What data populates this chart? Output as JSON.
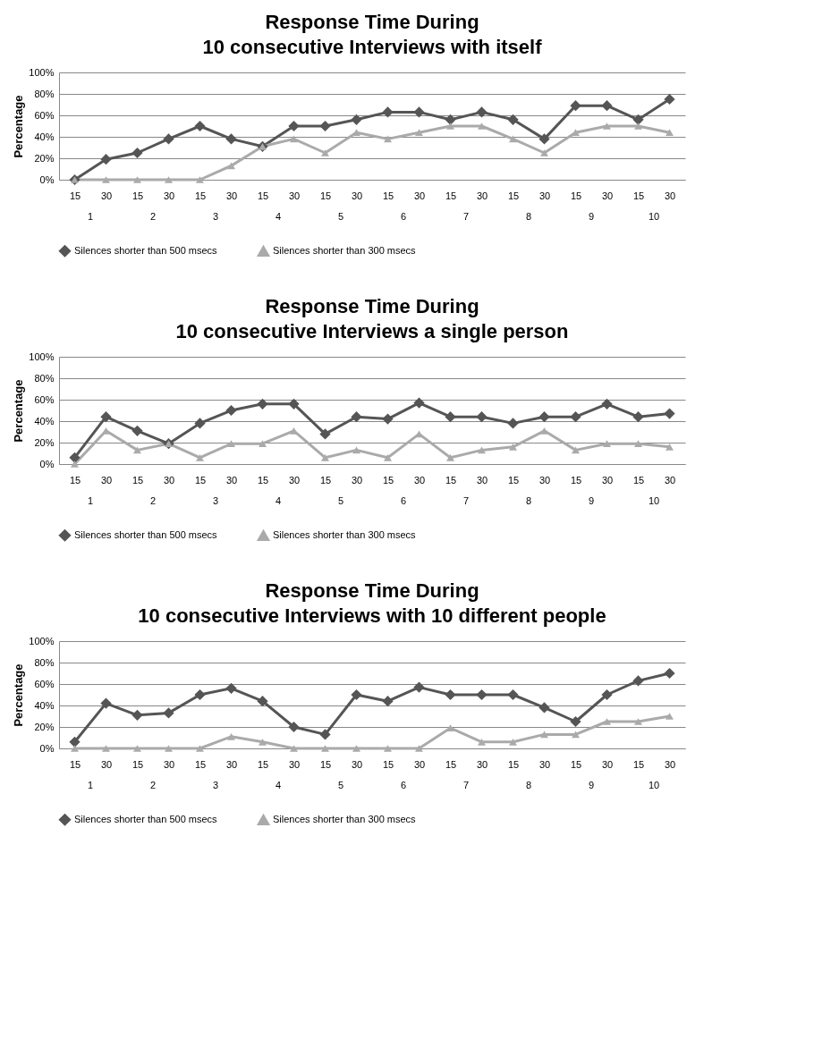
{
  "chart_data": [
    {
      "type": "line",
      "title": "Response Time During",
      "subtitle": "10 consecutive Interviews with itself",
      "ylabel": "Percentage",
      "categories": [
        "15",
        "30",
        "15",
        "30",
        "15",
        "30",
        "15",
        "30",
        "15",
        "30",
        "15",
        "30",
        "15",
        "30",
        "15",
        "30",
        "15",
        "30",
        "15",
        "30"
      ],
      "annotations": [
        "1",
        "2",
        "3",
        "4",
        "5",
        "6",
        "7",
        "8",
        "9",
        "10"
      ],
      "series": [
        {
          "name": "Silences shorter than 500 msecs",
          "color": "#555555",
          "marker": "diamond",
          "values": [
            0,
            19,
            25,
            38,
            50,
            38,
            31,
            50,
            50,
            56,
            63,
            63,
            56,
            63,
            56,
            38,
            69,
            69,
            56,
            75
          ]
        },
        {
          "name": "Silences shorter than 300 msecs",
          "color": "#aaaaaa",
          "marker": "triangle",
          "values": [
            0,
            0,
            0,
            0,
            0,
            13,
            31,
            38,
            25,
            44,
            38,
            44,
            50,
            50,
            38,
            25,
            44,
            50,
            50,
            44
          ]
        }
      ],
      "ylim": [
        0,
        100
      ],
      "yticks": [
        {
          "value": 0,
          "label": "0%"
        },
        {
          "value": 20,
          "label": "20%"
        },
        {
          "value": 40,
          "label": "40%"
        },
        {
          "value": 60,
          "label": "60%"
        },
        {
          "value": 80,
          "label": "80%"
        },
        {
          "value": 100,
          "label": "100%"
        }
      ],
      "grid": "y",
      "legend": "bottom",
      "line_style": "solid"
    },
    {
      "type": "line",
      "title": "Response Time During",
      "subtitle": "10 consecutive Interviews a single person",
      "ylabel": "Percentage",
      "categories": [
        "15",
        "30",
        "15",
        "30",
        "15",
        "30",
        "15",
        "30",
        "15",
        "30",
        "15",
        "30",
        "15",
        "30",
        "15",
        "30",
        "15",
        "30",
        "15",
        "30"
      ],
      "annotations": [
        "1",
        "2",
        "3",
        "4",
        "5",
        "6",
        "7",
        "8",
        "9",
        "10"
      ],
      "series": [
        {
          "name": "Silences shorter than 500 msecs",
          "color": "#555555",
          "marker": "diamond",
          "values": [
            6,
            44,
            31,
            19,
            38,
            50,
            56,
            56,
            28,
            44,
            42,
            57,
            44,
            44,
            38,
            44,
            44,
            56,
            44,
            47
          ]
        },
        {
          "name": "Silences shorter than 300 msecs",
          "color": "#aaaaaa",
          "marker": "triangle",
          "values": [
            0,
            31,
            13,
            19,
            6,
            19,
            19,
            31,
            6,
            13,
            6,
            28,
            6,
            13,
            16,
            31,
            13,
            19,
            19,
            16
          ]
        }
      ],
      "ylim": [
        0,
        100
      ],
      "yticks": [
        {
          "value": 0,
          "label": "0%"
        },
        {
          "value": 20,
          "label": "20%"
        },
        {
          "value": 40,
          "label": "40%"
        },
        {
          "value": 60,
          "label": "60%"
        },
        {
          "value": 80,
          "label": "80%"
        },
        {
          "value": 100,
          "label": "100%"
        }
      ],
      "grid": "y",
      "legend": "bottom",
      "line_style": "solid"
    },
    {
      "type": "line",
      "title": "Response Time During",
      "subtitle": "10 consecutive Interviews with 10 different people",
      "ylabel": "Percentage",
      "categories": [
        "15",
        "30",
        "15",
        "30",
        "15",
        "30",
        "15",
        "30",
        "15",
        "30",
        "15",
        "30",
        "15",
        "30",
        "15",
        "30",
        "15",
        "30",
        "15",
        "30"
      ],
      "annotations": [
        "1",
        "2",
        "3",
        "4",
        "5",
        "6",
        "7",
        "8",
        "9",
        "10"
      ],
      "series": [
        {
          "name": "Silences shorter than 500 msecs",
          "color": "#555555",
          "marker": "diamond",
          "values": [
            6,
            42,
            31,
            33,
            50,
            56,
            44,
            20,
            13,
            50,
            44,
            57,
            50,
            50,
            50,
            38,
            25,
            50,
            63,
            70
          ]
        },
        {
          "name": "Silences shorter than 300 msecs",
          "color": "#aaaaaa",
          "marker": "triangle",
          "values": [
            0,
            0,
            0,
            0,
            0,
            11,
            6,
            0,
            0,
            0,
            0,
            0,
            19,
            6,
            6,
            13,
            13,
            25,
            25,
            30
          ]
        }
      ],
      "ylim": [
        0,
        100
      ],
      "yticks": [
        {
          "value": 0,
          "label": "0%"
        },
        {
          "value": 20,
          "label": "20%"
        },
        {
          "value": 40,
          "label": "40%"
        },
        {
          "value": 60,
          "label": "60%"
        },
        {
          "value": 80,
          "label": "80%"
        },
        {
          "value": 100,
          "label": "100%"
        }
      ],
      "grid": "y",
      "legend": "bottom",
      "line_style": "solid"
    }
  ]
}
